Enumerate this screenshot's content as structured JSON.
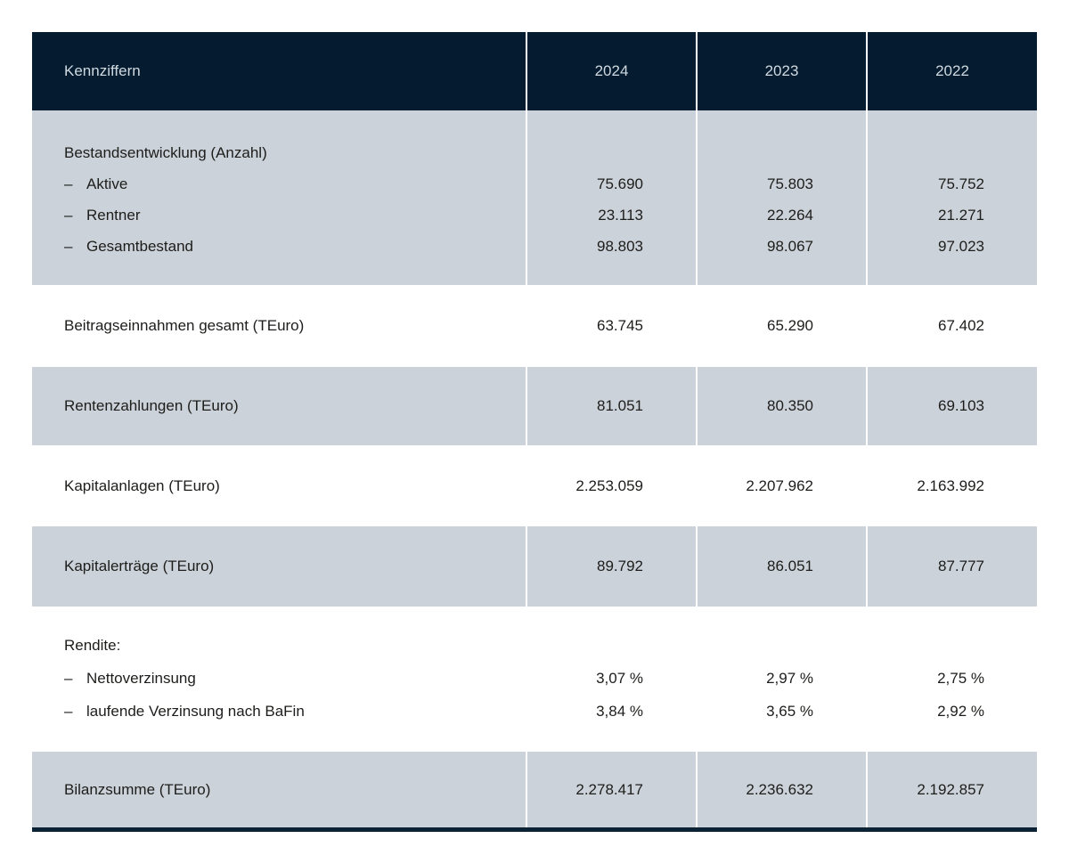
{
  "ui": {
    "dash": "–"
  },
  "colors": {
    "header_bg": "#051c30",
    "header_text": "#d0d9e0",
    "row_alt_bg": "#ccd2d9",
    "row_bg": "#ffffff",
    "body_text": "#1d1d1b",
    "column_separator": "#ffffff",
    "bottom_rule": "#0b2334"
  },
  "header": {
    "label": "Kennziffern",
    "years": [
      "2024",
      "2023",
      "2022"
    ]
  },
  "sections": [
    {
      "name": "Bestandsentwicklung",
      "rows": [
        {
          "label": "Bestandsentwicklung (Anzahl)",
          "values": [
            "",
            "",
            ""
          ]
        },
        {
          "label": "Aktive",
          "values": [
            "75.690",
            "75.803",
            "75.752"
          ]
        },
        {
          "label": "Rentner",
          "values": [
            "23.113",
            "22.264",
            "21.271"
          ]
        },
        {
          "label": "Gesamtbestand",
          "values": [
            "98.803",
            "98.067",
            "97.023"
          ]
        }
      ]
    },
    {
      "name": "Beitragseinnahmen",
      "rows": [
        {
          "label": "Beitragseinnahmen gesamt (TEuro)",
          "values": [
            "63.745",
            "65.290",
            "67.402"
          ]
        }
      ]
    },
    {
      "name": "Rentenzahlungen",
      "rows": [
        {
          "label": "Rentenzahlungen (TEuro)",
          "values": [
            "81.051",
            "80.350",
            "69.103"
          ]
        }
      ]
    },
    {
      "name": "Kapitalanlagen",
      "rows": [
        {
          "label": "Kapitalanlagen (TEuro)",
          "values": [
            "2.253.059",
            "2.207.962",
            "2.163.992"
          ]
        }
      ]
    },
    {
      "name": "Kapitalertraege",
      "rows": [
        {
          "label": "Kapitalerträge (TEuro)",
          "values": [
            "89.792",
            "86.051",
            "87.777"
          ]
        }
      ]
    },
    {
      "name": "Rendite",
      "rows": [
        {
          "label": "Rendite:",
          "values": [
            "",
            "",
            ""
          ]
        },
        {
          "label": "Nettoverzinsung",
          "values": [
            "3,07 %",
            "2,97 %",
            "2,75 %"
          ]
        },
        {
          "label": "laufende Verzinsung nach BaFin",
          "values": [
            "3,84 %",
            "3,65 %",
            "2,92 %"
          ]
        }
      ]
    },
    {
      "name": "Bilanzsumme",
      "rows": [
        {
          "label": "Bilanzsumme (TEuro)",
          "values": [
            "2.278.417",
            "2.236.632",
            "2.192.857"
          ]
        }
      ]
    }
  ]
}
